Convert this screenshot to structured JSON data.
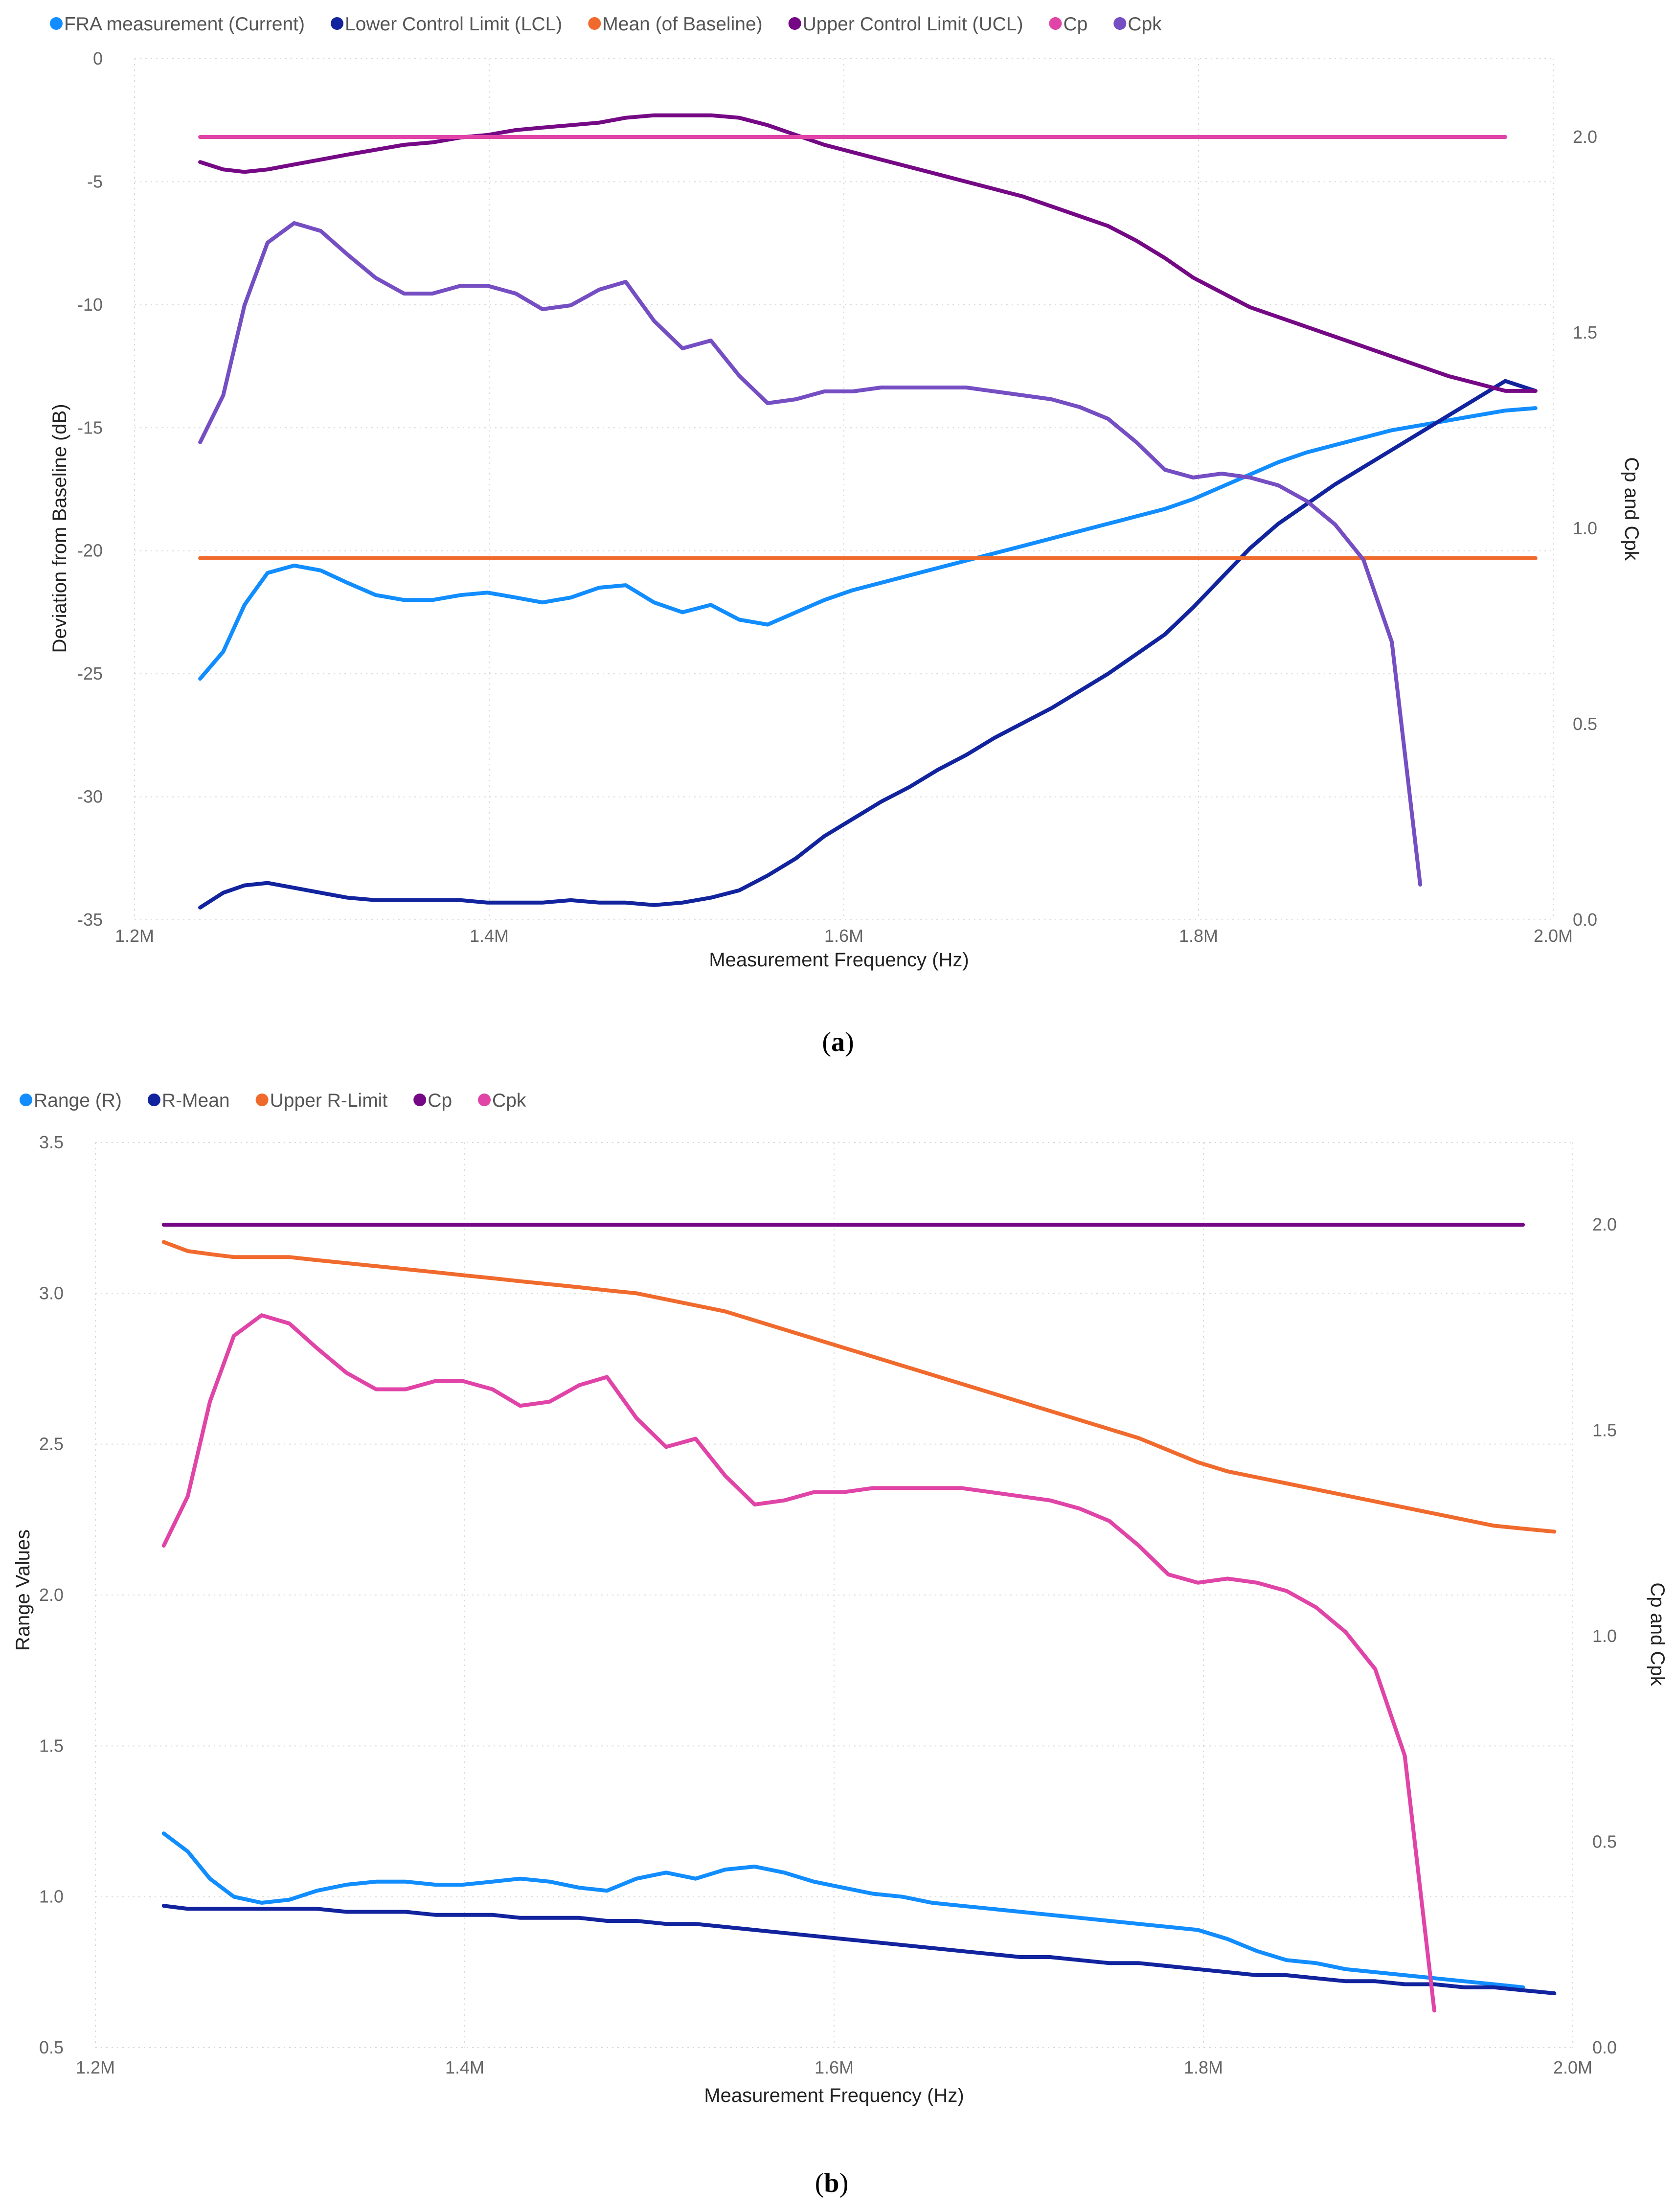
{
  "chart_data": [
    {
      "type": "line",
      "caption": "a",
      "xlabel": "Measurement Frequency (Hz)",
      "ylabel": "Deviation from Baseline (dB)",
      "y2label": "Cp and Cpk",
      "xlim": [
        1200000,
        2000000
      ],
      "ylim": [
        -35,
        0
      ],
      "y2lim": [
        0,
        2.2
      ],
      "xticks": [
        1200000,
        1400000,
        1600000,
        1800000,
        2000000
      ],
      "xticklabels": [
        "1.2M",
        "1.4M",
        "1.6M",
        "1.8M",
        "2.0M"
      ],
      "yticks": [
        0,
        -5,
        -10,
        -15,
        -20,
        -25,
        -30,
        -35
      ],
      "yticklabels": [
        "0",
        "-5",
        "-10",
        "-15",
        "-20",
        "-25",
        "-30",
        "-35"
      ],
      "y2ticks": [
        2.0,
        1.5,
        1.0,
        0.5,
        0.0
      ],
      "y2ticklabels": [
        "2.0",
        "1.5",
        "1.0",
        "0.5",
        "0.0"
      ],
      "x": [
        1237000,
        1250000,
        1262000,
        1275000,
        1290000,
        1305000,
        1320000,
        1336000,
        1352000,
        1368000,
        1384000,
        1399000,
        1415000,
        1430000,
        1446000,
        1462000,
        1477000,
        1493000,
        1509000,
        1525000,
        1541000,
        1557000,
        1573000,
        1589000,
        1605000,
        1621000,
        1637000,
        1653000,
        1669000,
        1685000,
        1701000,
        1717000,
        1733000,
        1749000,
        1765000,
        1781000,
        1797000,
        1813000,
        1829000,
        1845000,
        1861000,
        1877000,
        1893000,
        1909000,
        1925000,
        1941000,
        1957000,
        1973000,
        1990000
      ],
      "series": [
        {
          "name": "FRA measurement (Current)",
          "color": "#118dff",
          "axis": "left",
          "values": [
            -25.2,
            -24.1,
            -22.2,
            -20.9,
            -20.6,
            -20.8,
            -21.3,
            -21.8,
            -22.0,
            -22.0,
            -21.8,
            -21.7,
            -21.9,
            -22.1,
            -21.9,
            -21.5,
            -21.4,
            -22.1,
            -22.5,
            -22.2,
            -22.8,
            -23.0,
            -22.5,
            -22.0,
            -21.6,
            -21.3,
            -21.0,
            -20.7,
            -20.4,
            -20.1,
            -19.8,
            -19.5,
            -19.2,
            -18.9,
            -18.6,
            -18.3,
            -17.9,
            -17.4,
            -16.9,
            -16.4,
            -16.0,
            -15.7,
            -15.4,
            -15.1,
            -14.9,
            -14.7,
            -14.5,
            -14.3,
            -14.2
          ]
        },
        {
          "name": "Lower Control Limit (LCL)",
          "color": "#12239e",
          "axis": "left",
          "values": [
            -34.5,
            -33.9,
            -33.6,
            -33.5,
            -33.7,
            -33.9,
            -34.1,
            -34.2,
            -34.2,
            -34.2,
            -34.2,
            -34.3,
            -34.3,
            -34.3,
            -34.2,
            -34.3,
            -34.3,
            -34.4,
            -34.3,
            -34.1,
            -33.8,
            -33.2,
            -32.5,
            -31.6,
            -30.9,
            -30.2,
            -29.6,
            -28.9,
            -28.3,
            -27.6,
            -27.0,
            -26.4,
            -25.7,
            -25.0,
            -24.2,
            -23.4,
            -22.3,
            -21.1,
            -19.9,
            -18.9,
            -18.1,
            -17.3,
            -16.6,
            -15.9,
            -15.2,
            -14.5,
            -13.8,
            -13.1,
            -13.5
          ]
        },
        {
          "name": "Mean (of Baseline)",
          "color": "#f16a2d",
          "axis": "left",
          "values": [
            -20.3,
            -20.3,
            -20.3,
            -20.3,
            -20.3,
            -20.3,
            -20.3,
            -20.3,
            -20.3,
            -20.3,
            -20.3,
            -20.3,
            -20.3,
            -20.3,
            -20.3,
            -20.3,
            -20.3,
            -20.3,
            -20.3,
            -20.3,
            -20.3,
            -20.3,
            -20.3,
            -20.3,
            -20.3,
            -20.3,
            -20.3,
            -20.3,
            -20.3,
            -20.3,
            -20.3,
            -20.3,
            -20.3,
            -20.3,
            -20.3,
            -20.3,
            -20.3,
            -20.3,
            -20.3,
            -20.3,
            -20.3,
            -20.3,
            -20.3,
            -20.3,
            -20.3,
            -20.3,
            -20.3,
            -20.3,
            -20.3
          ]
        },
        {
          "name": "Upper Control Limit (UCL)",
          "color": "#750985",
          "axis": "left",
          "values": [
            -4.2,
            -4.5,
            -4.6,
            -4.5,
            -4.3,
            -4.1,
            -3.9,
            -3.7,
            -3.5,
            -3.4,
            -3.2,
            -3.1,
            -2.9,
            -2.8,
            -2.7,
            -2.6,
            -2.4,
            -2.3,
            -2.3,
            -2.3,
            -2.4,
            -2.7,
            -3.1,
            -3.5,
            -3.8,
            -4.1,
            -4.4,
            -4.7,
            -5.0,
            -5.3,
            -5.6,
            -6.0,
            -6.4,
            -6.8,
            -7.4,
            -8.1,
            -8.9,
            -9.5,
            -10.1,
            -10.5,
            -10.9,
            -11.3,
            -11.7,
            -12.1,
            -12.5,
            -12.9,
            -13.2,
            -13.5,
            -13.5
          ]
        },
        {
          "name": "Cp",
          "color": "#e044a7",
          "axis": "right",
          "values": [
            2.0,
            2.0,
            2.0,
            2.0,
            2.0,
            2.0,
            2.0,
            2.0,
            2.0,
            2.0,
            2.0,
            2.0,
            2.0,
            2.0,
            2.0,
            2.0,
            2.0,
            2.0,
            2.0,
            2.0,
            2.0,
            2.0,
            2.0,
            2.0,
            2.0,
            2.0,
            2.0,
            2.0,
            2.0,
            2.0,
            2.0,
            2.0,
            2.0,
            2.0,
            2.0,
            2.0,
            2.0,
            2.0,
            2.0,
            2.0,
            2.0,
            2.0,
            2.0,
            2.0,
            2.0,
            2.0,
            2.0,
            2.0,
            null
          ]
        },
        {
          "name": "Cpk",
          "color": "#744ec2",
          "axis": "right",
          "values": [
            1.22,
            1.34,
            1.57,
            1.73,
            1.78,
            1.76,
            1.7,
            1.64,
            1.6,
            1.6,
            1.62,
            1.62,
            1.6,
            1.56,
            1.57,
            1.61,
            1.63,
            1.53,
            1.46,
            1.48,
            1.39,
            1.32,
            1.33,
            1.35,
            1.35,
            1.36,
            1.36,
            1.36,
            1.36,
            1.35,
            1.34,
            1.33,
            1.31,
            1.28,
            1.22,
            1.15,
            1.13,
            1.14,
            1.13,
            1.11,
            1.07,
            1.01,
            0.92,
            0.71,
            0.09,
            null,
            null,
            null,
            null
          ]
        }
      ],
      "legend": [
        "FRA measurement (Current)",
        "Lower Control Limit (LCL)",
        "Mean (of Baseline)",
        "Upper Control Limit (UCL)",
        "Cp",
        "Cpk"
      ]
    },
    {
      "type": "line",
      "caption": "b",
      "xlabel": "Measurement Frequency (Hz)",
      "ylabel": "Range Values",
      "y2label": "Cp and Cpk",
      "xlim": [
        1200000,
        2000000
      ],
      "ylim": [
        0.5,
        3.5
      ],
      "y2lim": [
        0,
        2.2
      ],
      "xticks": [
        1200000,
        1400000,
        1600000,
        1800000,
        2000000
      ],
      "xticklabels": [
        "1.2M",
        "1.4M",
        "1.6M",
        "1.8M",
        "2.0M"
      ],
      "yticks": [
        3.5,
        3.0,
        2.5,
        2.0,
        1.5,
        1.0,
        0.5
      ],
      "yticklabels": [
        "3.5",
        "3.0",
        "2.5",
        "2.0",
        "1.5",
        "1.0",
        "0.5"
      ],
      "y2ticks": [
        2.0,
        1.5,
        1.0,
        0.5,
        0.0
      ],
      "y2ticklabels": [
        "2.0",
        "1.5",
        "1.0",
        "0.5",
        "0.0"
      ],
      "x": [
        1237000,
        1250000,
        1262000,
        1275000,
        1290000,
        1305000,
        1320000,
        1336000,
        1352000,
        1368000,
        1384000,
        1399000,
        1415000,
        1430000,
        1446000,
        1462000,
        1477000,
        1493000,
        1509000,
        1525000,
        1541000,
        1557000,
        1573000,
        1589000,
        1605000,
        1621000,
        1637000,
        1653000,
        1669000,
        1685000,
        1701000,
        1717000,
        1733000,
        1749000,
        1765000,
        1781000,
        1797000,
        1813000,
        1829000,
        1845000,
        1861000,
        1877000,
        1893000,
        1909000,
        1925000,
        1941000,
        1957000,
        1973000,
        1990000
      ],
      "series": [
        {
          "name": "Range (R)",
          "color": "#118dff",
          "axis": "left",
          "values": [
            1.21,
            1.15,
            1.06,
            1.0,
            0.98,
            0.99,
            1.02,
            1.04,
            1.05,
            1.05,
            1.04,
            1.04,
            1.05,
            1.06,
            1.05,
            1.03,
            1.02,
            1.06,
            1.08,
            1.06,
            1.09,
            1.1,
            1.08,
            1.05,
            1.03,
            1.01,
            1.0,
            0.98,
            0.97,
            0.96,
            0.95,
            0.94,
            0.93,
            0.92,
            0.91,
            0.9,
            0.89,
            0.86,
            0.82,
            0.79,
            0.78,
            0.76,
            0.75,
            0.74,
            0.73,
            0.72,
            0.71,
            0.7,
            null
          ]
        },
        {
          "name": "R-Mean",
          "color": "#12239e",
          "axis": "left",
          "values": [
            0.97,
            0.96,
            0.96,
            0.96,
            0.96,
            0.96,
            0.96,
            0.95,
            0.95,
            0.95,
            0.94,
            0.94,
            0.94,
            0.93,
            0.93,
            0.93,
            0.92,
            0.92,
            0.91,
            0.91,
            0.9,
            0.89,
            0.88,
            0.87,
            0.86,
            0.85,
            0.84,
            0.83,
            0.82,
            0.81,
            0.8,
            0.8,
            0.79,
            0.78,
            0.78,
            0.77,
            0.76,
            0.75,
            0.74,
            0.74,
            0.73,
            0.72,
            0.72,
            0.71,
            0.71,
            0.7,
            0.7,
            0.69,
            0.68
          ]
        },
        {
          "name": "Upper R-Limit",
          "color": "#f16a2d",
          "axis": "left",
          "values": [
            3.17,
            3.14,
            3.13,
            3.12,
            3.12,
            3.12,
            3.11,
            3.1,
            3.09,
            3.08,
            3.07,
            3.06,
            3.05,
            3.04,
            3.03,
            3.02,
            3.01,
            3.0,
            2.98,
            2.96,
            2.94,
            2.91,
            2.88,
            2.85,
            2.82,
            2.79,
            2.76,
            2.73,
            2.7,
            2.67,
            2.64,
            2.61,
            2.58,
            2.55,
            2.52,
            2.48,
            2.44,
            2.41,
            2.39,
            2.37,
            2.35,
            2.33,
            2.31,
            2.29,
            2.27,
            2.25,
            2.23,
            2.22,
            2.21
          ]
        },
        {
          "name": "Cp",
          "color": "#750985",
          "axis": "right",
          "values": [
            2.0,
            2.0,
            2.0,
            2.0,
            2.0,
            2.0,
            2.0,
            2.0,
            2.0,
            2.0,
            2.0,
            2.0,
            2.0,
            2.0,
            2.0,
            2.0,
            2.0,
            2.0,
            2.0,
            2.0,
            2.0,
            2.0,
            2.0,
            2.0,
            2.0,
            2.0,
            2.0,
            2.0,
            2.0,
            2.0,
            2.0,
            2.0,
            2.0,
            2.0,
            2.0,
            2.0,
            2.0,
            2.0,
            2.0,
            2.0,
            2.0,
            2.0,
            2.0,
            2.0,
            2.0,
            2.0,
            2.0,
            2.0,
            null
          ]
        },
        {
          "name": "Cpk",
          "color": "#e044a7",
          "axis": "right",
          "values": [
            1.22,
            1.34,
            1.57,
            1.73,
            1.78,
            1.76,
            1.7,
            1.64,
            1.6,
            1.6,
            1.62,
            1.62,
            1.6,
            1.56,
            1.57,
            1.61,
            1.63,
            1.53,
            1.46,
            1.48,
            1.39,
            1.32,
            1.33,
            1.35,
            1.35,
            1.36,
            1.36,
            1.36,
            1.36,
            1.35,
            1.34,
            1.33,
            1.31,
            1.28,
            1.22,
            1.15,
            1.13,
            1.14,
            1.13,
            1.11,
            1.07,
            1.01,
            0.92,
            0.71,
            0.09,
            null,
            null,
            null,
            null
          ]
        }
      ],
      "legend": [
        "Range (R)",
        "R-Mean",
        "Upper R-Limit",
        "Cp",
        "Cpk"
      ]
    }
  ]
}
